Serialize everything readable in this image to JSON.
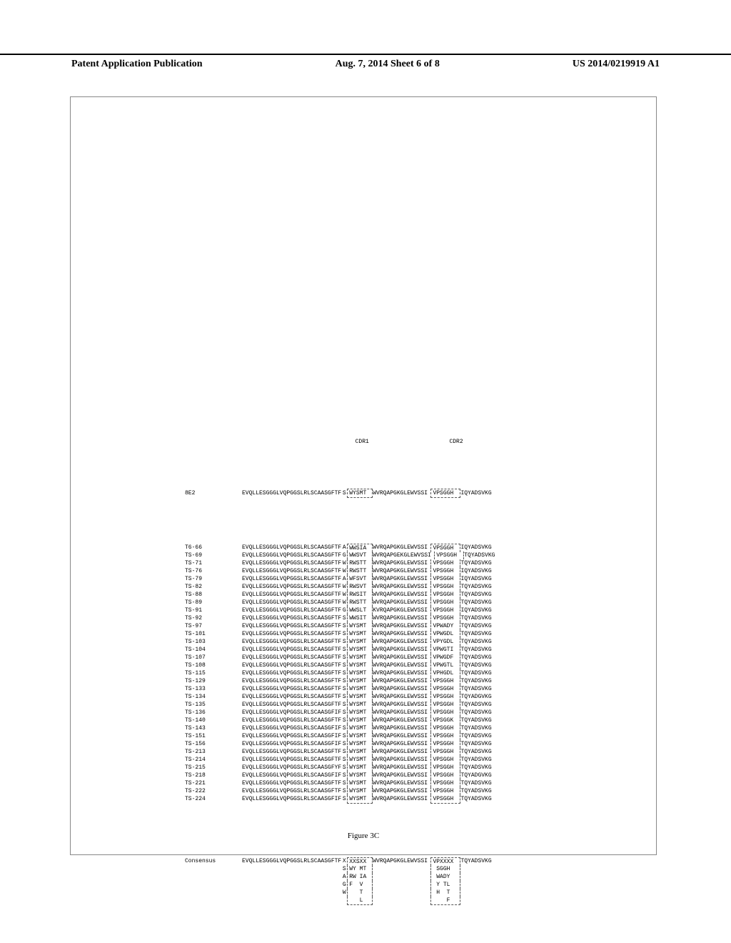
{
  "header": {
    "left": "Patent Application Publication",
    "center": "Aug. 7, 2014  Sheet 6 of 8",
    "right": "US 2014/0219919 A1"
  },
  "cdr_labels": {
    "cdr1": "CDR1",
    "cdr2": "CDR2"
  },
  "colors": {
    "text": "#000000",
    "border": "#888888",
    "dashed": "#555555",
    "background": "#ffffff"
  },
  "reference": {
    "id": "8E2",
    "pre": "EVQLLESGGGLVQPGGSLRLSCAASGFTF",
    "gap": "S",
    "cdr1": "WYSMT",
    "mid": "WVRQAPGKGLEWVS",
    "gap2": "SI",
    "cdr2": "VPSGGH",
    "end": "IQYADSVKG"
  },
  "sequences": [
    {
      "id": "T6-66",
      "pre": "EVQLLESGGGLVQPGGSLRLSCAASGFTF",
      "gap": "A",
      "cdr1": "WWSIA",
      "mid": "WVRQAPGKGLEWVS",
      "gap2": "SI",
      "cdr2": "VPSGGH",
      "end": "IQYADSVKG"
    },
    {
      "id": "TS-69",
      "pre": "EVQLLESGGGLVQPGGSLRLSCAASGFTF",
      "gap": "G",
      "cdr1": "WWSVT",
      "mid": "WVRQAPGEKGLEWVS",
      "gap2": "SI",
      "cdr2": "VPSGGH",
      "end": "TQYADSVKG"
    },
    {
      "id": "TS-71",
      "pre": "EVQLLESGGGLVQPGGSLRLSCAASGFTF",
      "gap": "W",
      "cdr1": "RWSTT",
      "mid": "WVRQAPGKGLEWVS",
      "gap2": "SI",
      "cdr2": "VPSGGH",
      "end": "TQYADSVKG"
    },
    {
      "id": "TS-76",
      "pre": "EVQLLESGGGLVQPGGSLRLSCAASGFTF",
      "gap": "W",
      "cdr1": "RWSTT",
      "mid": "WVRQAPGKGLEWVS",
      "gap2": "SI",
      "cdr2": "VPSGGH",
      "end": "IQYADSVKG"
    },
    {
      "id": "TS-79",
      "pre": "EVQLLESGGGLVQPGGSLRLSCAASGFTF",
      "gap": "A",
      "cdr1": "WFSVT",
      "mid": "WVRQAPGKGLEWVS",
      "gap2": "SI",
      "cdr2": "VPSGGH",
      "end": "IQYADSVKG"
    },
    {
      "id": "TS-82",
      "pre": "EVQLLESGGGLVQPGGSLRLSCAASGFTF",
      "gap": "W",
      "cdr1": "RWSVT",
      "mid": "WVRQAPGKGLEWVS",
      "gap2": "SI",
      "cdr2": "VPSGGH",
      "end": "TQYADSVKG"
    },
    {
      "id": "TS-88",
      "pre": "EVQLLESGGGLVQPGGSLRLSCAASGFTF",
      "gap": "W",
      "cdr1": "RWSIT",
      "mid": "WVRQAPGKGLEWVS",
      "gap2": "SI",
      "cdr2": "VPSGGH",
      "end": "TQYADSVKG"
    },
    {
      "id": "TS-89",
      "pre": "EVQLLESGGGLVQPGGSLRLSCAASGFTF",
      "gap": "W",
      "cdr1": "RWSTT",
      "mid": "WVRQAPGKGLEWVS",
      "gap2": "SI",
      "cdr2": "VPSGGH",
      "end": "TQYADSVKG"
    },
    {
      "id": "TS-91",
      "pre": "EVQLLESGGGLVQPGGSLRLSCAASGFTF",
      "gap": "G",
      "cdr1": "WWSLT",
      "mid": "KVRQAPGKGLEWVS",
      "gap2": "SI",
      "cdr2": "VPSGGH",
      "end": "IQYADSVKG"
    },
    {
      "id": "TS-92",
      "pre": "EVQLLESGGGLVQPGGSLRLSCAASGFTF",
      "gap": "S",
      "cdr1": "WWSIT",
      "mid": "WVRQAPGKGLEWVS",
      "gap2": "SI",
      "cdr2": "VPSGGH",
      "end": "TQYADSVKG"
    },
    {
      "id": "TS-97",
      "pre": "EVQLLESGGGLVQPGGSLRLSCAASGFTF",
      "gap": "S",
      "cdr1": "WYSMT",
      "mid": "WVRQAPGKGLEWVS",
      "gap2": "SI",
      "cdr2": "VPWADY",
      "end": "TQYADSVKG"
    },
    {
      "id": "TS-101",
      "pre": "EVQLLESGGGLVQPGGSLRLSCAASGFTF",
      "gap": "S",
      "cdr1": "WYSMT",
      "mid": "WVRQAPGKGLEWVS",
      "gap2": "SI",
      "cdr2": "VPWGDL",
      "end": "TQYADSVKG"
    },
    {
      "id": "TS-103",
      "pre": "EVQLLESGGGLVQPGGSLRLSCAASGFTF",
      "gap": "S",
      "cdr1": "WYSMT",
      "mid": "WVRQAPGKGLEWVS",
      "gap2": "SI",
      "cdr2": "VPYGDL",
      "end": "TQYADSVKG"
    },
    {
      "id": "TS-104",
      "pre": "EVQLLESGGGLVQPGGSLRLSCAASGFTF",
      "gap": "S",
      "cdr1": "WYSMT",
      "mid": "WVRQAPGKGLEWVS",
      "gap2": "SI",
      "cdr2": "VPWGTI",
      "end": "TQYADSVKG"
    },
    {
      "id": "TS-107",
      "pre": "EVQLLESGGGLVQPGGSLRLSCAASGFTF",
      "gap": "S",
      "cdr1": "WYSMT",
      "mid": "WVRQAPGKGLEWVS",
      "gap2": "SI",
      "cdr2": "VPWGDF",
      "end": "TQYADSVKG"
    },
    {
      "id": "TS-108",
      "pre": "EVQLLESGGGLVQPGGSLRLSCAASGFTF",
      "gap": "S",
      "cdr1": "WYSMT",
      "mid": "WVRQAPGKGLEWVS",
      "gap2": "SI",
      "cdr2": "VPWGTL",
      "end": "TQYADSVKG"
    },
    {
      "id": "TS-115",
      "pre": "EVQLLESGGGLVQPGGSLRLSCAASGFTF",
      "gap": "S",
      "cdr1": "WYSMT",
      "mid": "WVRQAPGKGLEWVS",
      "gap2": "SI",
      "cdr2": "VPHGDL",
      "end": "TQYADSVKG"
    },
    {
      "id": "TS-129",
      "pre": "EVQLLESGGGLVQPGGSLRLSCAASGFTF",
      "gap": "S",
      "cdr1": "WYSMT",
      "mid": "WVRQAPGKGLEWVS",
      "gap2": "SI",
      "cdr2": "VPSGGH",
      "end": "TQYADSVKG"
    },
    {
      "id": "TS-133",
      "pre": "EVQLLESGGGLVQPGGSLRLSCAASGFTF",
      "gap": "S",
      "cdr1": "WYSMT",
      "mid": "WVRQAPGKGLEWVS",
      "gap2": "SI",
      "cdr2": "VPSGGH",
      "end": "TQYADSVKG"
    },
    {
      "id": "TS-134",
      "pre": "EVQLLESGGGLVQPGGSLRLSCAASGFTF",
      "gap": "S",
      "cdr1": "WYSMT",
      "mid": "WVRQAPGKGLEWVS",
      "gap2": "SI",
      "cdr2": "VPSGGH",
      "end": "TQYADGVKG"
    },
    {
      "id": "TS-135",
      "pre": "EVQLLESGGGLVQPGGSLRLSCAASGFTF",
      "gap": "S",
      "cdr1": "WYSMT",
      "mid": "WVRQAPGKGLEWVS",
      "gap2": "SI",
      "cdr2": "VPSGGH",
      "end": "TQYADSVKG"
    },
    {
      "id": "TS-136",
      "pre": "EVQLLESGGGLVQPGGSLRLSCAASGFIF",
      "gap": "S",
      "cdr1": "WYSMT",
      "mid": "WVRQAPGKGLEWVS",
      "gap2": "SI",
      "cdr2": "VPSGGH",
      "end": "TQYADSVKG"
    },
    {
      "id": "TS-140",
      "pre": "EVQLLESGGGLVQPGGSLRLSCAASGFTF",
      "gap": "S",
      "cdr1": "WYSMT",
      "mid": "WVRQAPGKGLEWVS",
      "gap2": "SI",
      "cdr2": "VPSGGK",
      "end": "TQYADSVKG"
    },
    {
      "id": "TS-143",
      "pre": "EVQLLESGGGLVQPGGSLRLSCAASGFIF",
      "gap": "S",
      "cdr1": "WYSMT",
      "mid": "WVRQAPGKGLEWVS",
      "gap2": "SI",
      "cdr2": "VPSGGH",
      "end": "TQYADSVKG"
    },
    {
      "id": "TS-151",
      "pre": "EVQLLESGGGLVQPGGSLRLSCAASGFIF",
      "gap": "S",
      "cdr1": "WYSMT",
      "mid": "WVRQAPGKGLEWVS",
      "gap2": "SI",
      "cdr2": "VPSGGH",
      "end": "TQYADSVKG"
    },
    {
      "id": "TS-156",
      "pre": "EVQLLESGGGLVQPGGSLRLSCAASGFIF",
      "gap": "S",
      "cdr1": "WYSMT",
      "mid": "WVRQAPGKGLEWVS",
      "gap2": "SI",
      "cdr2": "VPSGGH",
      "end": "TQYADSVKG"
    },
    {
      "id": "TS-213",
      "pre": "EVQLLESGGGLVQPGGSLRLSCAASGFTF",
      "gap": "S",
      "cdr1": "WYSMT",
      "mid": "WVRQAPGKGLEWVS",
      "gap2": "SI",
      "cdr2": "VPSGGH",
      "end": "TQYADSVKG"
    },
    {
      "id": "TS-214",
      "pre": "EVQLLESGGGLVQPGGSLRLSCAASGFTF",
      "gap": "S",
      "cdr1": "WYSMT",
      "mid": "WVRQAPGKGLEWVS",
      "gap2": "SI",
      "cdr2": "VPSGGH",
      "end": "TQYADSVKG"
    },
    {
      "id": "TS-215",
      "pre": "EVQLLESGGGLVQPGGSLRLSCAASGFYF",
      "gap": "S",
      "cdr1": "WYSMT",
      "mid": "WVRQAPGKGLEWVS",
      "gap2": "SI",
      "cdr2": "VPSGGH",
      "end": "TQYADSVKG"
    },
    {
      "id": "TS-218",
      "pre": "EVQLLESGGGLVQPGGSLRLSCAASGFIF",
      "gap": "S",
      "cdr1": "WYSMT",
      "mid": "WVRQAPGKGLEWVS",
      "gap2": "SI",
      "cdr2": "VPSGGH",
      "end": "TQYADGVKG"
    },
    {
      "id": "TS-221",
      "pre": "EVQLLESGGGLVQPGGSLRLSCAASGFTF",
      "gap": "S",
      "cdr1": "WYSMT",
      "mid": "WVRQAPGKGLEWVS",
      "gap2": "SI",
      "cdr2": "VPSGGH",
      "end": "TQYADSVKG"
    },
    {
      "id": "TS-222",
      "pre": "EVQLLESGGGLVQPGGSLRLSCAASGFTF",
      "gap": "S",
      "cdr1": "WYSMT",
      "mid": "WVRQAPGKGLEWVS",
      "gap2": "SI",
      "cdr2": "VPSGGH",
      "end": "TQYADSVKG"
    },
    {
      "id": "TS-224",
      "pre": "EVQLLESGGGLVQPGGSLRLSCAASGFIF",
      "gap": "S",
      "cdr1": "WYSMT",
      "mid": "WVRQAPGKGLEWVS",
      "gap2": "SI",
      "cdr2": "VPSGGH",
      "end": "TQYADSVKG"
    }
  ],
  "consensus": {
    "id": "Consensus",
    "pre": "EVQLLESGGGLVQPGGSLRLSCAASGFTF",
    "gap_lines": [
      "X",
      "S",
      "A",
      "G",
      "W"
    ],
    "cdr1_lines": [
      "XXSXX",
      "WY MT",
      "RW IA",
      "F  V",
      "   T",
      "   L"
    ],
    "mid": "WVRQAPGKGLEWVS",
    "gap2": "SI",
    "cdr2_lines": [
      "VPXXXX",
      " SGGH",
      " WADY",
      " Y TL",
      " H  T",
      "    F"
    ],
    "end": "TQYADSVKG"
  },
  "figure_caption": "Figure 3C"
}
